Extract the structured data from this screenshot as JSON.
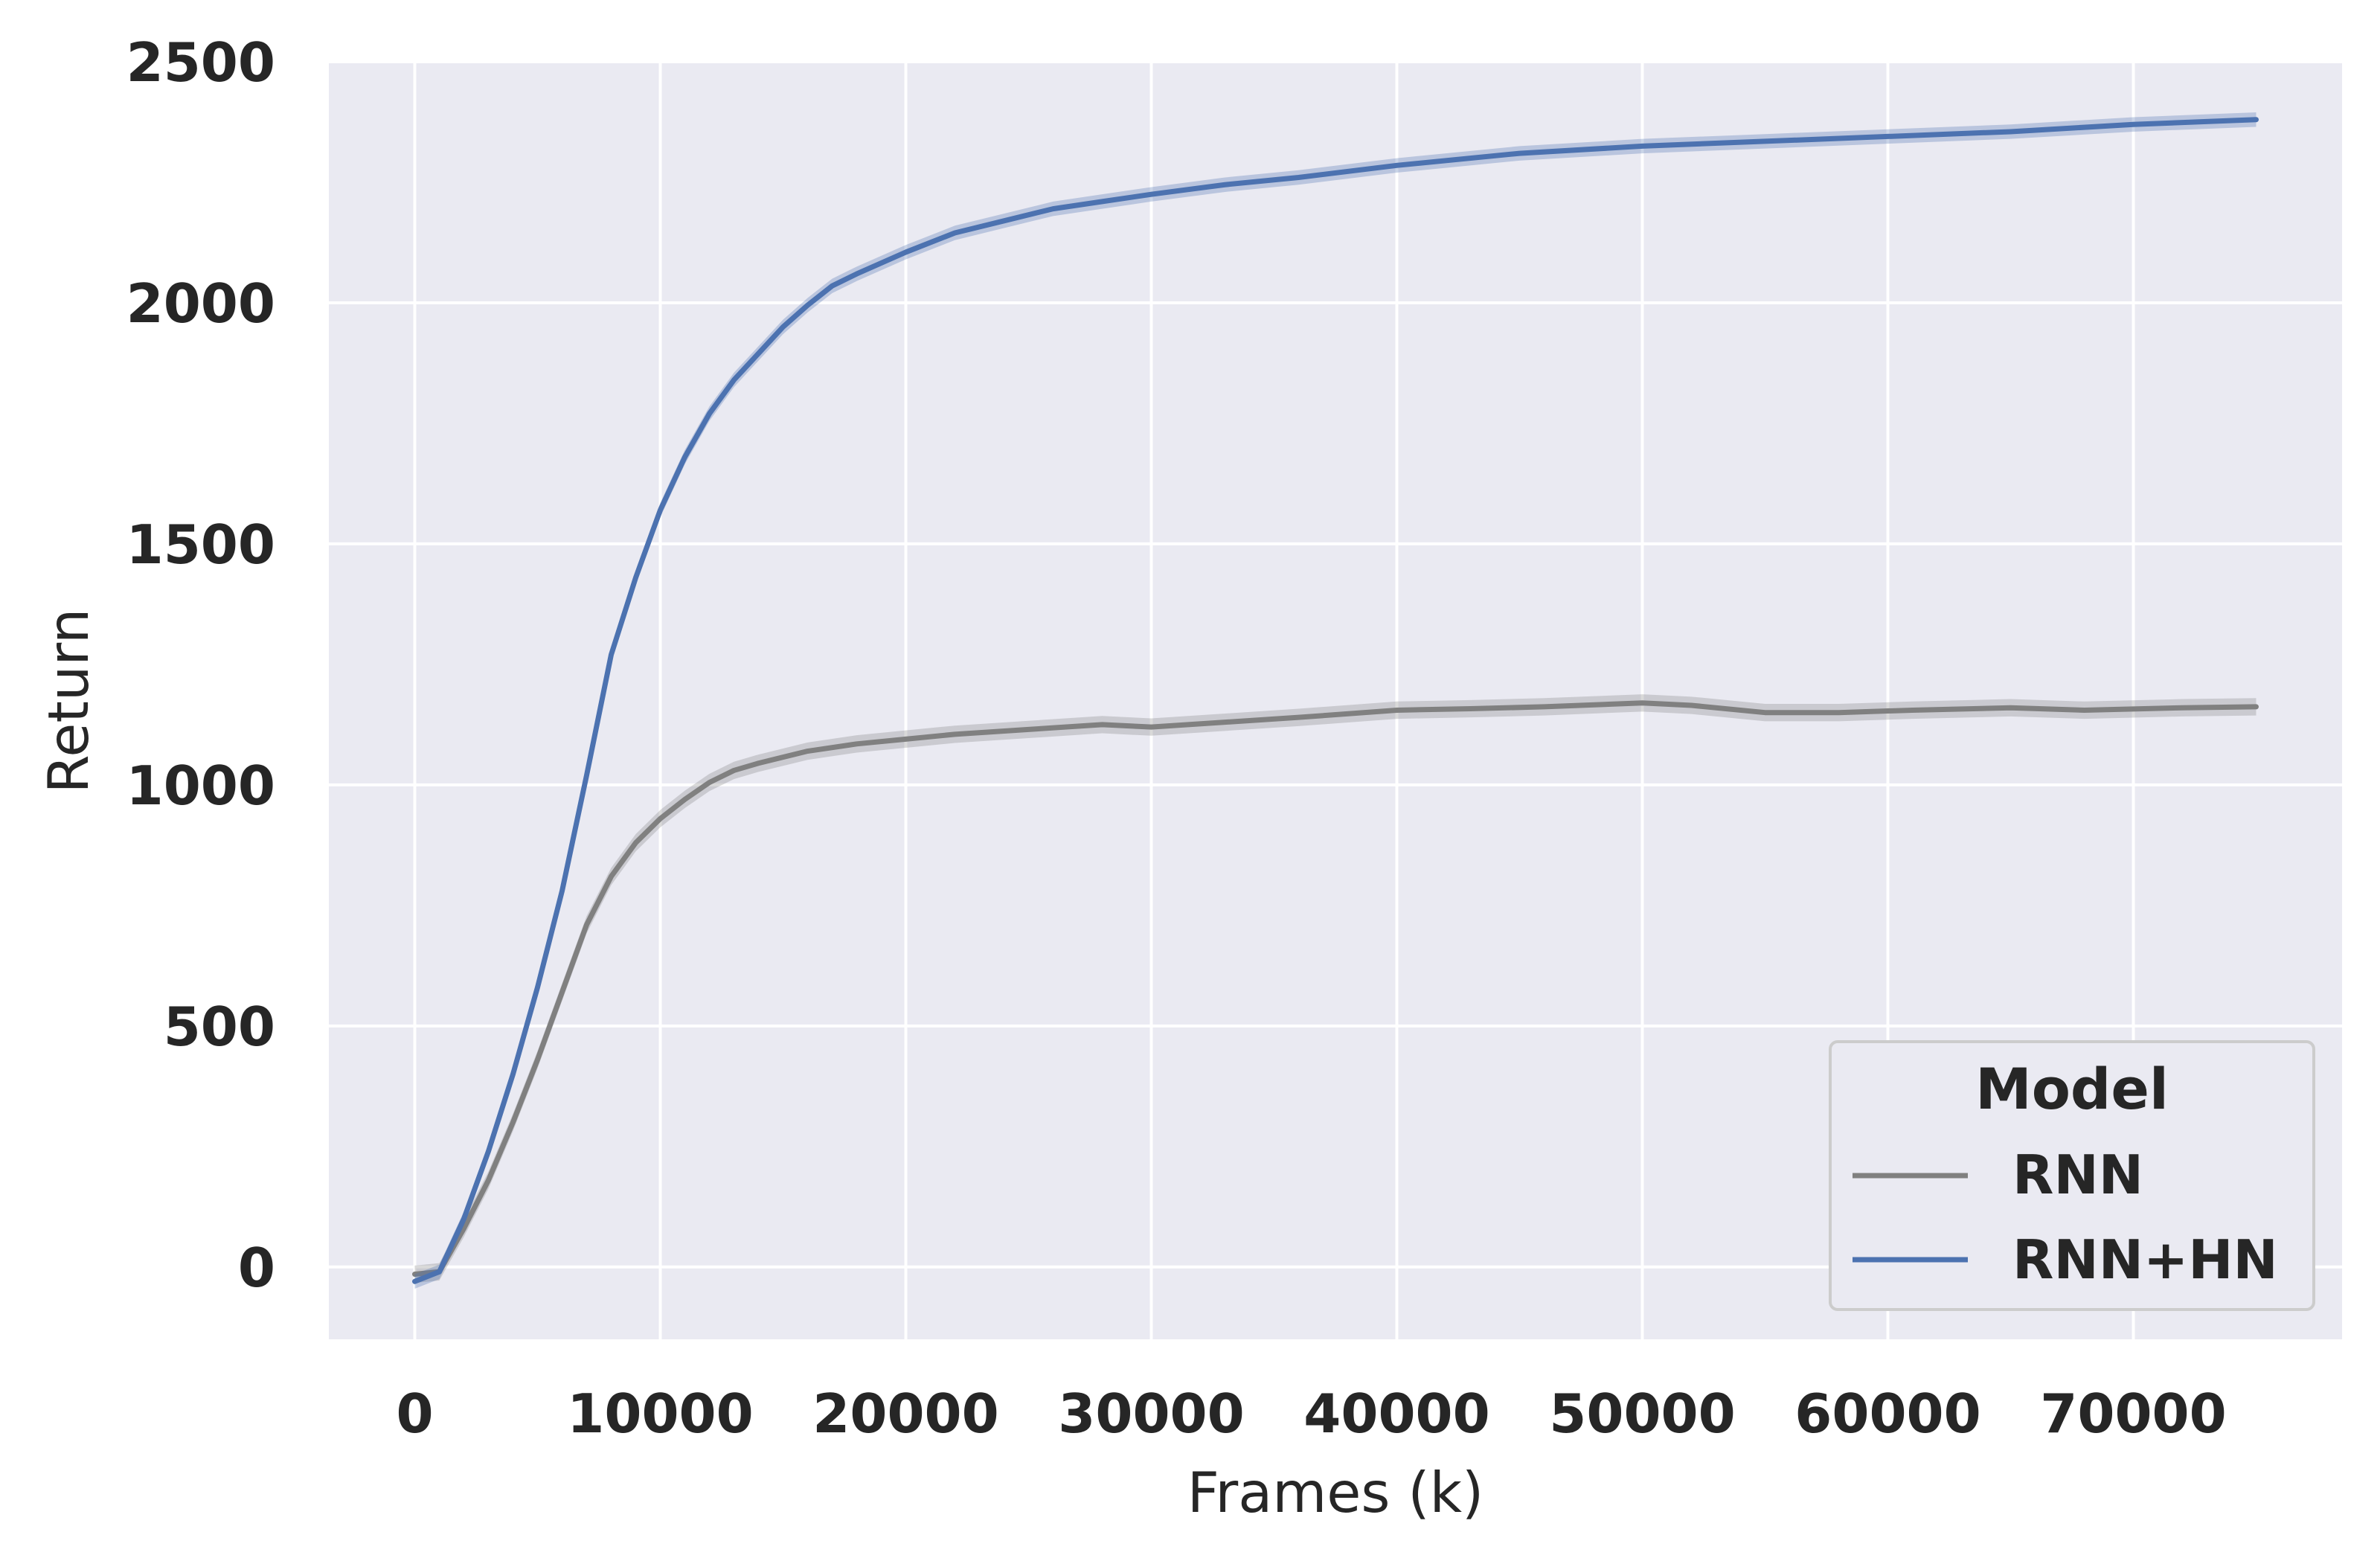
{
  "chart_data": {
    "type": "line",
    "title": "",
    "xlabel": "Frames (k)",
    "ylabel": "Return",
    "xlim": [
      -3500,
      78500
    ],
    "ylim": [
      -150,
      2500
    ],
    "xticks": [
      0,
      10000,
      20000,
      30000,
      40000,
      50000,
      60000,
      70000
    ],
    "xtick_labels": [
      "0",
      "10000",
      "20000",
      "30000",
      "40000",
      "50000",
      "60000",
      "70000"
    ],
    "yticks": [
      0,
      500,
      1000,
      1500,
      2000,
      2500
    ],
    "ytick_labels": [
      "0",
      "500",
      "1000",
      "1500",
      "2000",
      "2500"
    ],
    "grid": true,
    "legend": {
      "title": "Model",
      "placement": "lower-right"
    },
    "colors": {
      "plot_bg": "#eaeaf2",
      "grid": "#ffffff",
      "band_opacity": 0.3
    },
    "series": [
      {
        "name": "RNN",
        "color": "#808080",
        "band": 18,
        "x": [
          0,
          1000,
          2000,
          3000,
          4000,
          5000,
          6000,
          7000,
          8000,
          9000,
          10000,
          11000,
          12000,
          13000,
          14000,
          16000,
          18000,
          20000,
          22000,
          25000,
          28000,
          30000,
          33000,
          36000,
          40000,
          43000,
          46000,
          50000,
          52000,
          55000,
          58000,
          61000,
          65000,
          68000,
          72000,
          75000
        ],
        "y": [
          -15,
          -10,
          80,
          180,
          300,
          430,
          570,
          710,
          810,
          880,
          930,
          970,
          1005,
          1030,
          1045,
          1070,
          1085,
          1095,
          1105,
          1115,
          1125,
          1120,
          1130,
          1140,
          1155,
          1158,
          1162,
          1170,
          1165,
          1150,
          1150,
          1155,
          1160,
          1155,
          1160,
          1162
        ]
      },
      {
        "name": "RNN+HN",
        "color": "#4c72b0",
        "band": 15,
        "x": [
          0,
          1000,
          2000,
          3000,
          4000,
          5000,
          6000,
          7000,
          8000,
          9000,
          10000,
          11000,
          12000,
          13000,
          14000,
          15000,
          16000,
          17000,
          18000,
          20000,
          22000,
          24000,
          26000,
          28000,
          30000,
          33000,
          36000,
          40000,
          45000,
          50000,
          55000,
          60000,
          65000,
          70000,
          75000
        ],
        "y": [
          -30,
          -10,
          100,
          240,
          400,
          580,
          780,
          1020,
          1270,
          1430,
          1570,
          1680,
          1770,
          1840,
          1895,
          1950,
          1995,
          2035,
          2060,
          2105,
          2145,
          2170,
          2195,
          2210,
          2225,
          2245,
          2260,
          2285,
          2310,
          2325,
          2335,
          2345,
          2355,
          2370,
          2380
        ]
      }
    ]
  }
}
